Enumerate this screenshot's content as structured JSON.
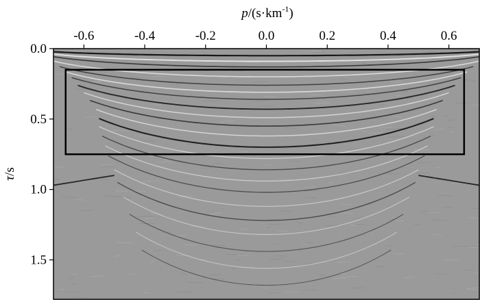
{
  "chart_data": {
    "type": "heatmap",
    "title": "",
    "xlabel": {
      "italic": "p",
      "text": "/(s·km",
      "sup": "-1",
      "close": ")"
    },
    "ylabel": {
      "italic": "τ",
      "text": "/s"
    },
    "x_ticks": [
      {
        "value": -0.6,
        "label": "-0.6"
      },
      {
        "value": -0.4,
        "label": "-0.4"
      },
      {
        "value": -0.2,
        "label": "-0.2"
      },
      {
        "value": 0.0,
        "label": "0.0"
      },
      {
        "value": 0.2,
        "label": "0.2"
      },
      {
        "value": 0.4,
        "label": "0.4"
      },
      {
        "value": 0.6,
        "label": "0.6"
      }
    ],
    "y_ticks": [
      {
        "value": 0.0,
        "label": "0.0"
      },
      {
        "value": 0.5,
        "label": "0.5"
      },
      {
        "value": 1.0,
        "label": "1.0"
      },
      {
        "value": 1.5,
        "label": "1.5"
      }
    ],
    "xlim": [
      -0.7,
      0.7
    ],
    "ylim": [
      0.0,
      1.78
    ],
    "y_inverted": true,
    "x_axis_position": "top",
    "highlight_box": {
      "p_range": [
        -0.66,
        0.65
      ],
      "tau_range": [
        0.15,
        0.75
      ]
    },
    "events": [
      {
        "tau0": 0.05,
        "pmax": 0.72,
        "polarity": "dark",
        "strength": 1.0
      },
      {
        "tau0": 0.09,
        "pmax": 0.72,
        "polarity": "light",
        "strength": 0.8
      },
      {
        "tau0": 0.13,
        "pmax": 0.72,
        "polarity": "dark",
        "strength": 0.6
      },
      {
        "tau0": 0.2,
        "pmax": 0.7,
        "polarity": "light",
        "strength": 0.6
      },
      {
        "tau0": 0.26,
        "pmax": 0.68,
        "polarity": "dark",
        "strength": 0.5
      },
      {
        "tau0": 0.31,
        "pmax": 0.66,
        "polarity": "light",
        "strength": 0.6
      },
      {
        "tau0": 0.36,
        "pmax": 0.64,
        "polarity": "dark",
        "strength": 0.5
      },
      {
        "tau0": 0.43,
        "pmax": 0.62,
        "polarity": "dark",
        "strength": 0.8
      },
      {
        "tau0": 0.49,
        "pmax": 0.6,
        "polarity": "light",
        "strength": 0.5
      },
      {
        "tau0": 0.55,
        "pmax": 0.58,
        "polarity": "dark",
        "strength": 0.6
      },
      {
        "tau0": 0.62,
        "pmax": 0.56,
        "polarity": "light",
        "strength": 0.5
      },
      {
        "tau0": 0.7,
        "pmax": 0.55,
        "polarity": "dark",
        "strength": 0.9
      },
      {
        "tau0": 0.78,
        "pmax": 0.55,
        "polarity": "light",
        "strength": 0.4
      },
      {
        "tau0": 0.86,
        "pmax": 0.54,
        "polarity": "dark",
        "strength": 0.4
      },
      {
        "tau0": 0.94,
        "pmax": 0.53,
        "polarity": "light",
        "strength": 0.35
      },
      {
        "tau0": 1.02,
        "pmax": 0.52,
        "polarity": "dark",
        "strength": 0.35
      },
      {
        "tau0": 1.12,
        "pmax": 0.5,
        "polarity": "light",
        "strength": 0.3
      },
      {
        "tau0": 1.22,
        "pmax": 0.49,
        "polarity": "dark",
        "strength": 0.4
      },
      {
        "tau0": 1.32,
        "pmax": 0.47,
        "polarity": "light",
        "strength": 0.25
      },
      {
        "tau0": 1.44,
        "pmax": 0.45,
        "polarity": "dark",
        "strength": 0.25
      },
      {
        "tau0": 1.56,
        "pmax": 0.43,
        "polarity": "light",
        "strength": 0.2
      },
      {
        "tau0": 1.68,
        "pmax": 0.41,
        "polarity": "dark",
        "strength": 0.2
      }
    ],
    "flank_events": [
      {
        "tau": 0.9,
        "p_from": -0.72,
        "p_to": -0.5,
        "polarity": "dark"
      },
      {
        "tau": 0.9,
        "p_from": 0.5,
        "p_to": 0.72,
        "polarity": "dark"
      }
    ],
    "colors": {
      "background": "#9a9a9a",
      "dark": "#111111",
      "light": "#f2f2f2",
      "box": "#000000"
    }
  }
}
